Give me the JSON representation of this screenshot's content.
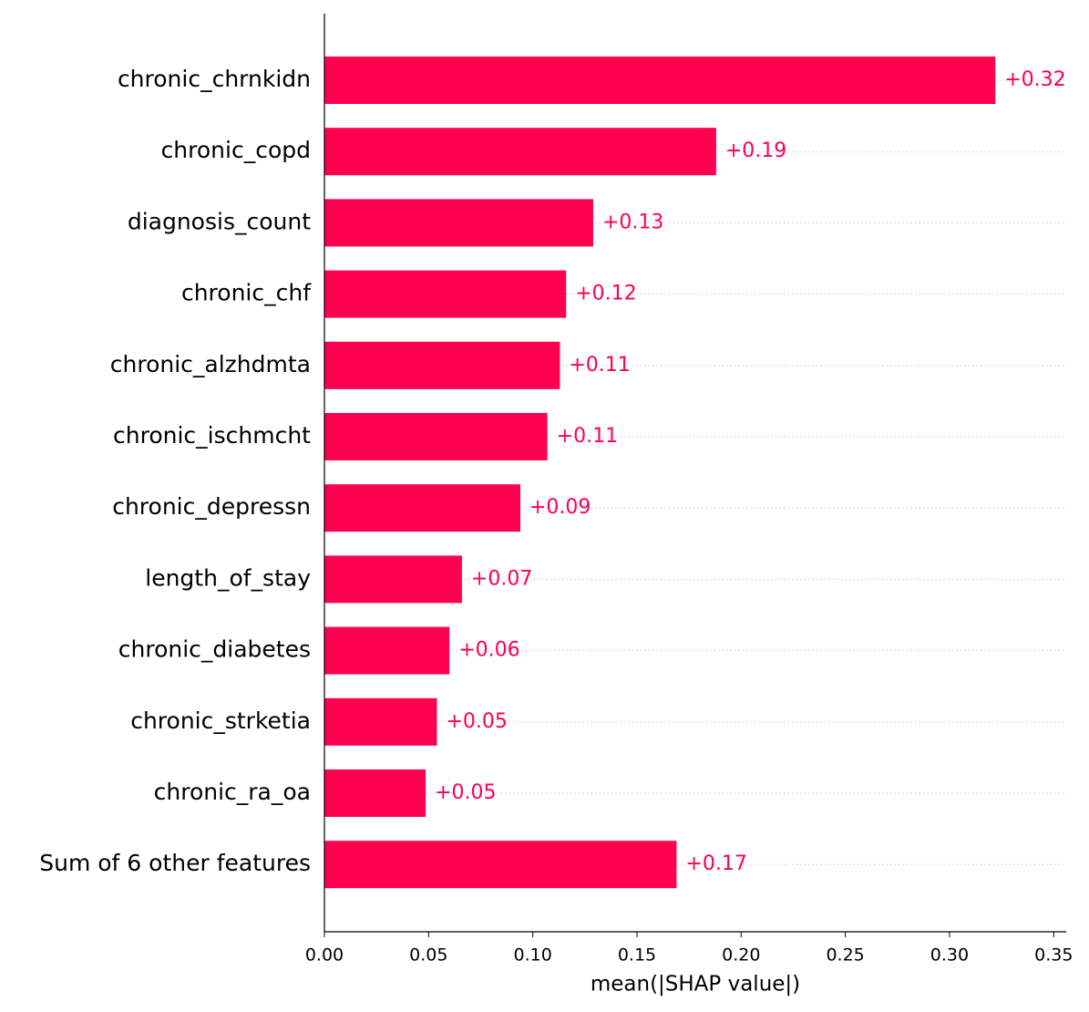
{
  "chart_data": {
    "type": "barh",
    "xlabel": "mean(|SHAP value|)",
    "categories": [
      "chronic_chrnkidn",
      "chronic_copd",
      "diagnosis_count",
      "chronic_chf",
      "chronic_alzhdmta",
      "chronic_ischmcht",
      "chronic_depressn",
      "length_of_stay",
      "chronic_diabetes",
      "chronic_strketia",
      "chronic_ra_oa",
      "Sum of 6 other features"
    ],
    "values": [
      0.322,
      0.188,
      0.129,
      0.116,
      0.113,
      0.107,
      0.094,
      0.066,
      0.06,
      0.054,
      0.0486,
      0.169
    ],
    "value_labels": [
      "+0.32",
      "+0.19",
      "+0.13",
      "+0.12",
      "+0.11",
      "+0.11",
      "+0.09",
      "+0.07",
      "+0.06",
      "+0.05",
      "+0.05",
      "+0.17"
    ],
    "color": "#ff0051",
    "xlim": [
      0,
      0.356
    ],
    "xticks": [
      {
        "value": 0,
        "label": "0.00"
      },
      {
        "value": 0.05,
        "label": "0.05"
      },
      {
        "value": 0.1,
        "label": "0.10"
      },
      {
        "value": 0.15,
        "label": "0.15"
      },
      {
        "value": 0.2,
        "label": "0.20"
      },
      {
        "value": 0.25,
        "label": "0.25"
      },
      {
        "value": 0.3,
        "label": "0.30"
      },
      {
        "value": 0.35,
        "label": "0.35"
      }
    ]
  }
}
